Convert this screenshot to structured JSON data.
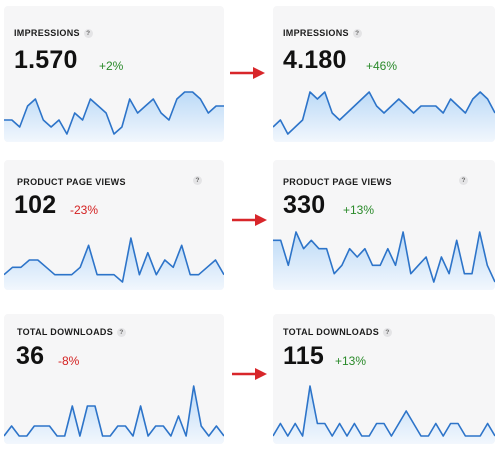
{
  "colors": {
    "line": "#2d74c9",
    "fill_top": "#bcdaf7",
    "fill_bottom": "#f2f7fd",
    "arrow": "#d8262a",
    "up": "#2a8a2a",
    "down": "#d42222"
  },
  "icons": {
    "help": "?",
    "arrow": "red-right-arrow-icon"
  },
  "cards": [
    {
      "id": "impressions-before",
      "title": "IMPRESSIONS",
      "value": "1.570",
      "delta": "+2%",
      "trend": "up",
      "series": [
        3,
        3,
        2,
        5,
        6,
        3,
        2,
        3,
        1,
        4,
        3,
        6,
        5,
        4,
        1,
        2,
        6,
        4,
        5,
        6,
        4,
        3,
        6,
        7,
        7,
        6,
        4,
        5,
        5
      ]
    },
    {
      "id": "impressions-after",
      "title": "IMPRESSIONS",
      "value": "4.180",
      "delta": "+46%",
      "trend": "up",
      "series": [
        2,
        3,
        1,
        2,
        3,
        7,
        6,
        7,
        4,
        3,
        4,
        5,
        6,
        7,
        5,
        4,
        5,
        6,
        5,
        4,
        5,
        5,
        5,
        4,
        6,
        5,
        4,
        6,
        7,
        6,
        4
      ]
    },
    {
      "id": "product-page-views-before",
      "title": "PRODUCT PAGE VIEWS",
      "value": "102",
      "delta": "-23%",
      "trend": "down",
      "series": [
        2,
        3,
        3,
        4,
        4,
        3,
        2,
        2,
        2,
        3,
        6,
        2,
        2,
        2,
        1,
        7,
        2,
        5,
        2,
        4,
        3,
        6,
        2,
        2,
        3,
        4,
        2
      ]
    },
    {
      "id": "product-page-views-after",
      "title": "PRODUCT PAGE VIEWS",
      "value": "330",
      "delta": "+13%",
      "trend": "up",
      "series": [
        7,
        7,
        4,
        8,
        6,
        7,
        6,
        6,
        3,
        4,
        6,
        5,
        6,
        4,
        4,
        6,
        4,
        8,
        3,
        4,
        5,
        2,
        5,
        3,
        7,
        3,
        3,
        8,
        4,
        2
      ]
    },
    {
      "id": "total-downloads-before",
      "title": "TOTAL DOWNLOADS",
      "value": "36",
      "delta": "-8%",
      "trend": "down",
      "series": [
        1,
        2,
        1,
        1,
        2,
        2,
        2,
        1,
        1,
        4,
        1,
        4,
        4,
        1,
        1,
        2,
        2,
        1,
        4,
        1,
        2,
        2,
        1,
        3,
        1,
        6,
        2,
        1,
        2,
        1
      ]
    },
    {
      "id": "total-downloads-after",
      "title": "TOTAL DOWNLOADS",
      "value": "115",
      "delta": "+13%",
      "trend": "up",
      "series": [
        1,
        2,
        1,
        2,
        1,
        5,
        2,
        2,
        1,
        2,
        1,
        2,
        1,
        1,
        2,
        2,
        1,
        2,
        3,
        2,
        1,
        1,
        2,
        1,
        2,
        2,
        1,
        1,
        1,
        2,
        1
      ]
    }
  ]
}
